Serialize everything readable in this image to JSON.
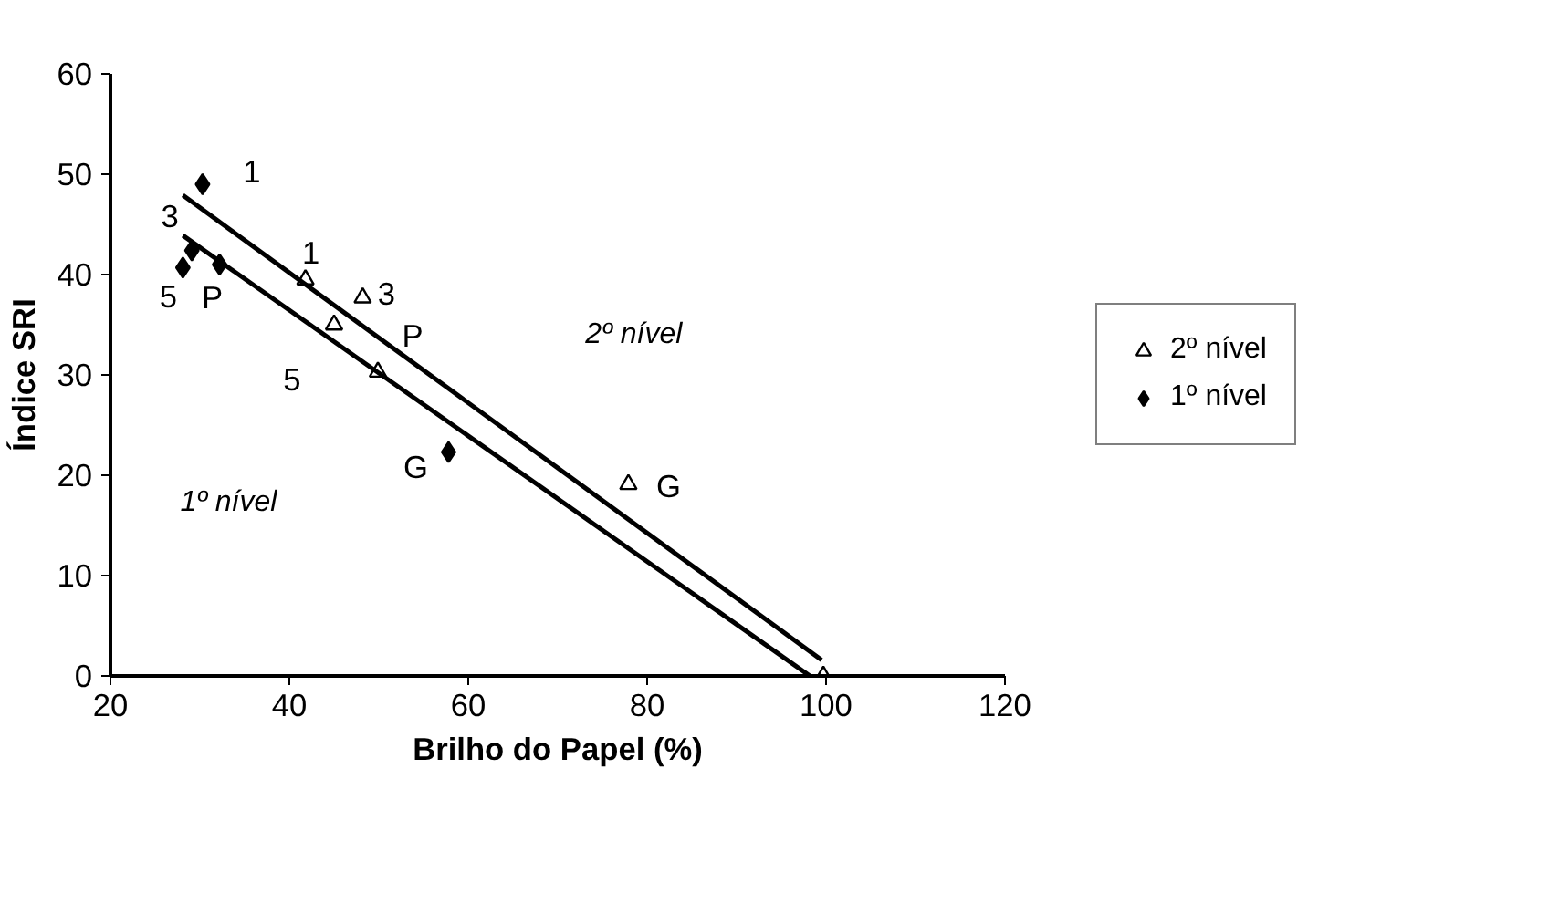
{
  "chart_data": {
    "type": "scatter",
    "xlabel": "Brilho do Papel (%)",
    "ylabel": "Índice SRI",
    "xlim": [
      20,
      120
    ],
    "ylim": [
      0,
      60
    ],
    "xticks": [
      20,
      40,
      60,
      80,
      100,
      120
    ],
    "yticks": [
      0,
      10,
      20,
      30,
      40,
      50,
      60
    ],
    "grid": false,
    "legend": "right",
    "series": [
      {
        "name": "2º nível",
        "marker": "triangle",
        "color": "#000000",
        "x": [
          41.8,
          45.0,
          49.9,
          48.2,
          77.9,
          99.7
        ],
        "values": [
          39.5,
          35.0,
          30.3,
          37.7,
          19.1,
          0
        ]
      },
      {
        "name": "1º nível",
        "marker": "diamond",
        "color": "#000000",
        "x": [
          30.3,
          28.1,
          29.1,
          32.2,
          57.8
        ],
        "values": [
          49.0,
          40.7,
          42.4,
          41.0,
          22.3
        ]
      },
      {
        "type": "line",
        "color": "#000000",
        "x": [
          28.1,
          99.5
        ],
        "values": [
          47.9,
          1.6
        ]
      },
      {
        "type": "line",
        "color": "#000000",
        "x": [
          28.1,
          98.2
        ],
        "values": [
          43.9,
          0
        ]
      }
    ],
    "annotations": [
      {
        "text": "1",
        "x": 41.8,
        "y": 39.5
      },
      {
        "text": "5",
        "x": 45.0,
        "y": 35.0
      },
      {
        "text": "P",
        "x": 49.9,
        "y": 30.3
      },
      {
        "text": "3",
        "x": 48.2,
        "y": 37.7
      },
      {
        "text": "G",
        "x": 77.9,
        "y": 19.1
      },
      {
        "text": "1",
        "x": 30.3,
        "y": 49.0
      },
      {
        "text": "5",
        "x": 28.1,
        "y": 40.7
      },
      {
        "text": "3",
        "x": 29.1,
        "y": 42.4
      },
      {
        "text": "P",
        "x": 32.2,
        "y": 41.0
      },
      {
        "text": "G",
        "x": 57.8,
        "y": 22.3
      },
      "2º nível",
      "1º nível"
    ]
  }
}
